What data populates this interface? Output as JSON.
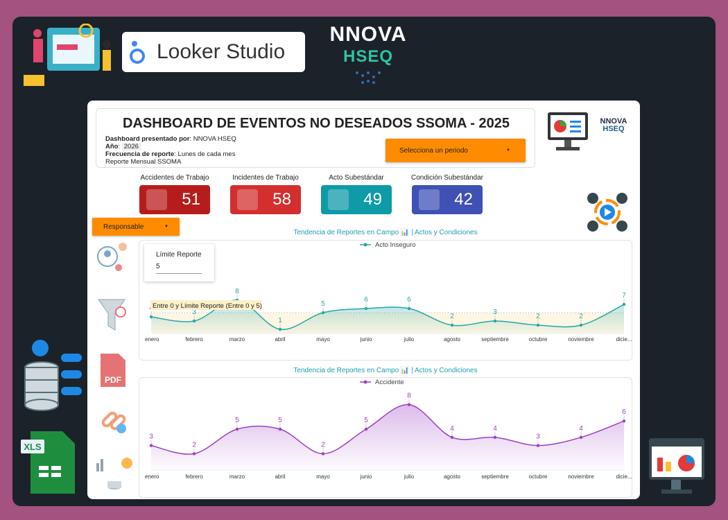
{
  "brand": {
    "looker": "Looker Studio",
    "logo_top": "NNOVA",
    "logo_bottom": "HSEQ",
    "small_logo_top": "NNOVA",
    "small_logo_bottom": "HSEQ"
  },
  "header": {
    "title": "DASHBOARD DE EVENTOS NO DESEADOS SSOMA - 2025",
    "presented_label": "Dashboard presentado por",
    "presented_value": "NNOVA HSEQ",
    "year_label": "Año",
    "year_value": "2026",
    "freq_label": "Frecuencia de reporte",
    "freq_value": "Lunes de cada mes",
    "report": "Reporte Mensual SSOMA",
    "period_select": "Selecciona un periodo"
  },
  "filters": {
    "responsable": "Responsable"
  },
  "kpis": [
    {
      "label": "Accidentes de Trabajo",
      "value": "51",
      "color": "#b71c1c"
    },
    {
      "label": "Incidentes de Trabajo",
      "value": "58",
      "color": "#d32f2f"
    },
    {
      "label": "Acto Subestándar",
      "value": "49",
      "color": "#0e9aa7"
    },
    {
      "label": "Condición Subestándar",
      "value": "42",
      "color": "#3f51b5"
    }
  ],
  "limit": {
    "label": "Límite Reporte",
    "value": "5"
  },
  "sidebar_icons": [
    "users-network-icon",
    "filter-icon",
    "pdf-icon",
    "link-icon",
    "data-flow-icon"
  ],
  "decor": {
    "xls": "XLS",
    "pdf": "PDF"
  },
  "chart_data": [
    {
      "type": "line",
      "title": "Tendencia de Reportes en Campo 📊 | Actos y Condiciones",
      "categories": [
        "enero",
        "febrero",
        "marzo",
        "abril",
        "mayo",
        "junio",
        "julio",
        "agosto",
        "septiembre",
        "octubre",
        "noviembre",
        "dicie..."
      ],
      "series": [
        {
          "name": "Acto Inseguro",
          "values": [
            4,
            3,
            8,
            1,
            5,
            6,
            6,
            2,
            3,
            2,
            2,
            7
          ],
          "color": "#26a6a6"
        }
      ],
      "reference_band": {
        "label": "Entre 0 y Límite Reporte (Entre 0 y 5)",
        "from": 0,
        "to": 5,
        "color": "#fdf6e3"
      },
      "legend": "top",
      "smooth": true,
      "area": true
    },
    {
      "type": "line",
      "title": "Tendencia de Reportes en Campo 📊 | Actos y Condiciones",
      "categories": [
        "enero",
        "febrero",
        "marzo",
        "abril",
        "mayo",
        "junio",
        "julio",
        "agosto",
        "septiembre",
        "octubre",
        "noviembre",
        "dicie..."
      ],
      "series": [
        {
          "name": "Accidente",
          "values": [
            3,
            2,
            5,
            5,
            2,
            5,
            8,
            4,
            4,
            3,
            4,
            6
          ],
          "color": "#9c3fc4"
        }
      ],
      "legend": "top",
      "smooth": true,
      "area": true
    }
  ]
}
